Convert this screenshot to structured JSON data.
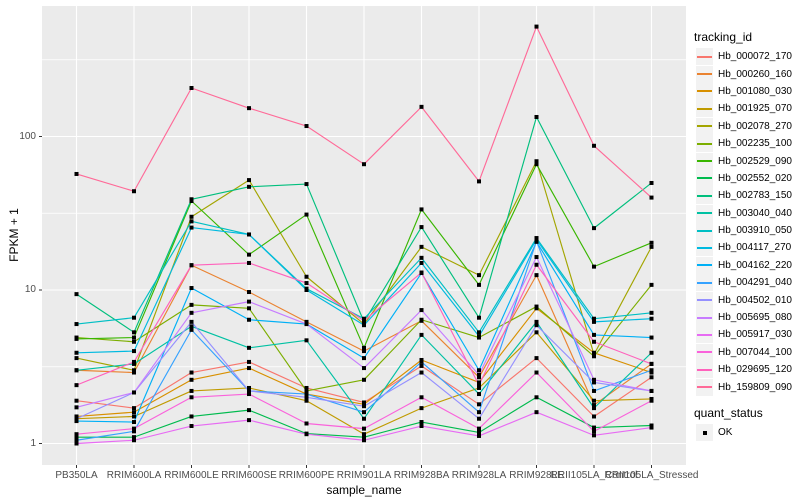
{
  "figure": {
    "background": "#FFFFFF",
    "panel_background": "#EBEBEB",
    "grid_color": "#FFFFFF",
    "tick_mark_color": "#333333",
    "axis_text_color": "#4D4D4D",
    "point_color": "#000000",
    "legend_key_fill": "#F2F2F2"
  },
  "chart_data": {
    "type": "line",
    "title": "",
    "xlabel": "sample_name",
    "ylabel": "FPKM + 1",
    "y_scale": "log10",
    "grid": true,
    "legend_position": "right",
    "y_ticks": [
      1,
      10,
      100
    ],
    "y_minor_ticks": [
      3.162,
      31.62,
      316.2
    ],
    "ylim": [
      0.73,
      700
    ],
    "categories": [
      "PB350LA",
      "RRIM600LA",
      "RRIM600LE",
      "RRIM600SE",
      "RRIM600PE",
      "RRIM901LA",
      "RRIM928BA",
      "RRIM928LA",
      "RRIM928LE",
      "RRII105LA_Control",
      "RRII105LA_Stressed"
    ],
    "series": [
      {
        "name": "Hb_000072_170",
        "color": "#F8766D",
        "values": [
          1.9,
          1.7,
          2.9,
          3.4,
          2.3,
          1.85,
          3.2,
          1.8,
          3.6,
          1.5,
          2.7
        ]
      },
      {
        "name": "Hb_000260_160",
        "color": "#EA8331",
        "values": [
          3.0,
          2.9,
          14.5,
          9.7,
          6.2,
          4.0,
          6.3,
          2.7,
          12.5,
          1.78,
          3.3
        ]
      },
      {
        "name": "Hb_001080_030",
        "color": "#D89000",
        "values": [
          1.5,
          1.6,
          2.6,
          3.1,
          2.1,
          1.8,
          3.5,
          2.5,
          7.6,
          3.9,
          2.9
        ]
      },
      {
        "name": "Hb_001925_070",
        "color": "#C09B00",
        "values": [
          1.45,
          1.5,
          2.2,
          2.3,
          1.9,
          1.15,
          1.7,
          2.3,
          5.3,
          1.9,
          1.95
        ]
      },
      {
        "name": "Hb_002078_270",
        "color": "#A3A500",
        "values": [
          3.6,
          3.0,
          30.0,
          52.0,
          12.2,
          6.0,
          19.1,
          12.5,
          69.0,
          3.8,
          19.1
        ]
      },
      {
        "name": "Hb_002235_100",
        "color": "#7CAE00",
        "values": [
          4.9,
          4.6,
          8.0,
          7.6,
          2.2,
          2.6,
          6.4,
          4.9,
          7.8,
          3.7,
          10.8
        ]
      },
      {
        "name": "Hb_002529_090",
        "color": "#39B600",
        "values": [
          4.8,
          4.9,
          38.0,
          17.0,
          31.0,
          4.2,
          33.5,
          10.8,
          66.0,
          14.2,
          20.3
        ]
      },
      {
        "name": "Hb_002552_020",
        "color": "#00BB4E",
        "values": [
          1.1,
          1.1,
          1.5,
          1.65,
          1.16,
          1.1,
          1.38,
          1.18,
          2.0,
          1.27,
          1.31
        ]
      },
      {
        "name": "Hb_002783_150",
        "color": "#00BF7D",
        "values": [
          9.4,
          5.3,
          39.0,
          47.0,
          49.0,
          6.2,
          25.7,
          6.6,
          134.0,
          25.3,
          49.8
        ]
      },
      {
        "name": "Hb_003040_040",
        "color": "#00C1A3",
        "values": [
          3.0,
          3.3,
          5.8,
          4.2,
          4.7,
          1.45,
          5.1,
          2.1,
          6.2,
          1.7,
          3.9
        ]
      },
      {
        "name": "Hb_003910_050",
        "color": "#00BFC4",
        "values": [
          6.0,
          6.6,
          28.0,
          23.0,
          10.2,
          6.5,
          16.2,
          5.3,
          21.8,
          6.5,
          7.1
        ]
      },
      {
        "name": "Hb_004117_270",
        "color": "#00BAE0",
        "values": [
          3.9,
          4.0,
          25.5,
          23.0,
          10.0,
          5.9,
          15.0,
          5.0,
          21.3,
          6.2,
          6.5
        ]
      },
      {
        "name": "Hb_004162_220",
        "color": "#00B0F6",
        "values": [
          1.4,
          1.38,
          10.3,
          6.4,
          6.0,
          3.6,
          12.9,
          3.0,
          20.6,
          5.1,
          4.9
        ]
      },
      {
        "name": "Hb_004291_040",
        "color": "#35A2FF",
        "values": [
          1.05,
          1.2,
          5.5,
          2.2,
          2.1,
          1.6,
          3.4,
          1.6,
          20.8,
          2.2,
          3.0
        ]
      },
      {
        "name": "Hb_004502_010",
        "color": "#9590FF",
        "values": [
          1.45,
          2.15,
          6.2,
          2.2,
          2.0,
          1.75,
          2.9,
          1.45,
          5.9,
          2.5,
          2.2
        ]
      },
      {
        "name": "Hb_005695_080",
        "color": "#C77CFF",
        "values": [
          1.72,
          2.15,
          7.1,
          8.4,
          6.0,
          3.1,
          7.4,
          2.8,
          16.4,
          2.6,
          2.2
        ]
      },
      {
        "name": "Hb_005917_030",
        "color": "#E76BF3",
        "values": [
          1.0,
          1.05,
          1.3,
          1.42,
          1.15,
          1.05,
          1.3,
          1.12,
          1.6,
          1.13,
          1.27
        ]
      },
      {
        "name": "Hb_007044_100",
        "color": "#FA62DB",
        "values": [
          1.15,
          1.25,
          2.0,
          2.1,
          1.35,
          1.25,
          2.0,
          1.25,
          2.9,
          1.2,
          1.9
        ]
      },
      {
        "name": "Hb_029695_120",
        "color": "#FF62BC",
        "values": [
          2.4,
          3.4,
          14.5,
          15.0,
          11.1,
          6.3,
          13.0,
          2.4,
          14.6,
          4.6,
          3.3
        ]
      },
      {
        "name": "Hb_159809_090",
        "color": "#FF6A98",
        "values": [
          57.0,
          44.0,
          207.0,
          153.0,
          117.0,
          66.0,
          156.0,
          51.0,
          520.0,
          87.0,
          40.0
        ]
      }
    ],
    "legend": {
      "color_title": "tracking_id",
      "shape_title": "quant_status",
      "shape_items": [
        {
          "label": "OK",
          "shape": "filled-square"
        }
      ]
    }
  }
}
